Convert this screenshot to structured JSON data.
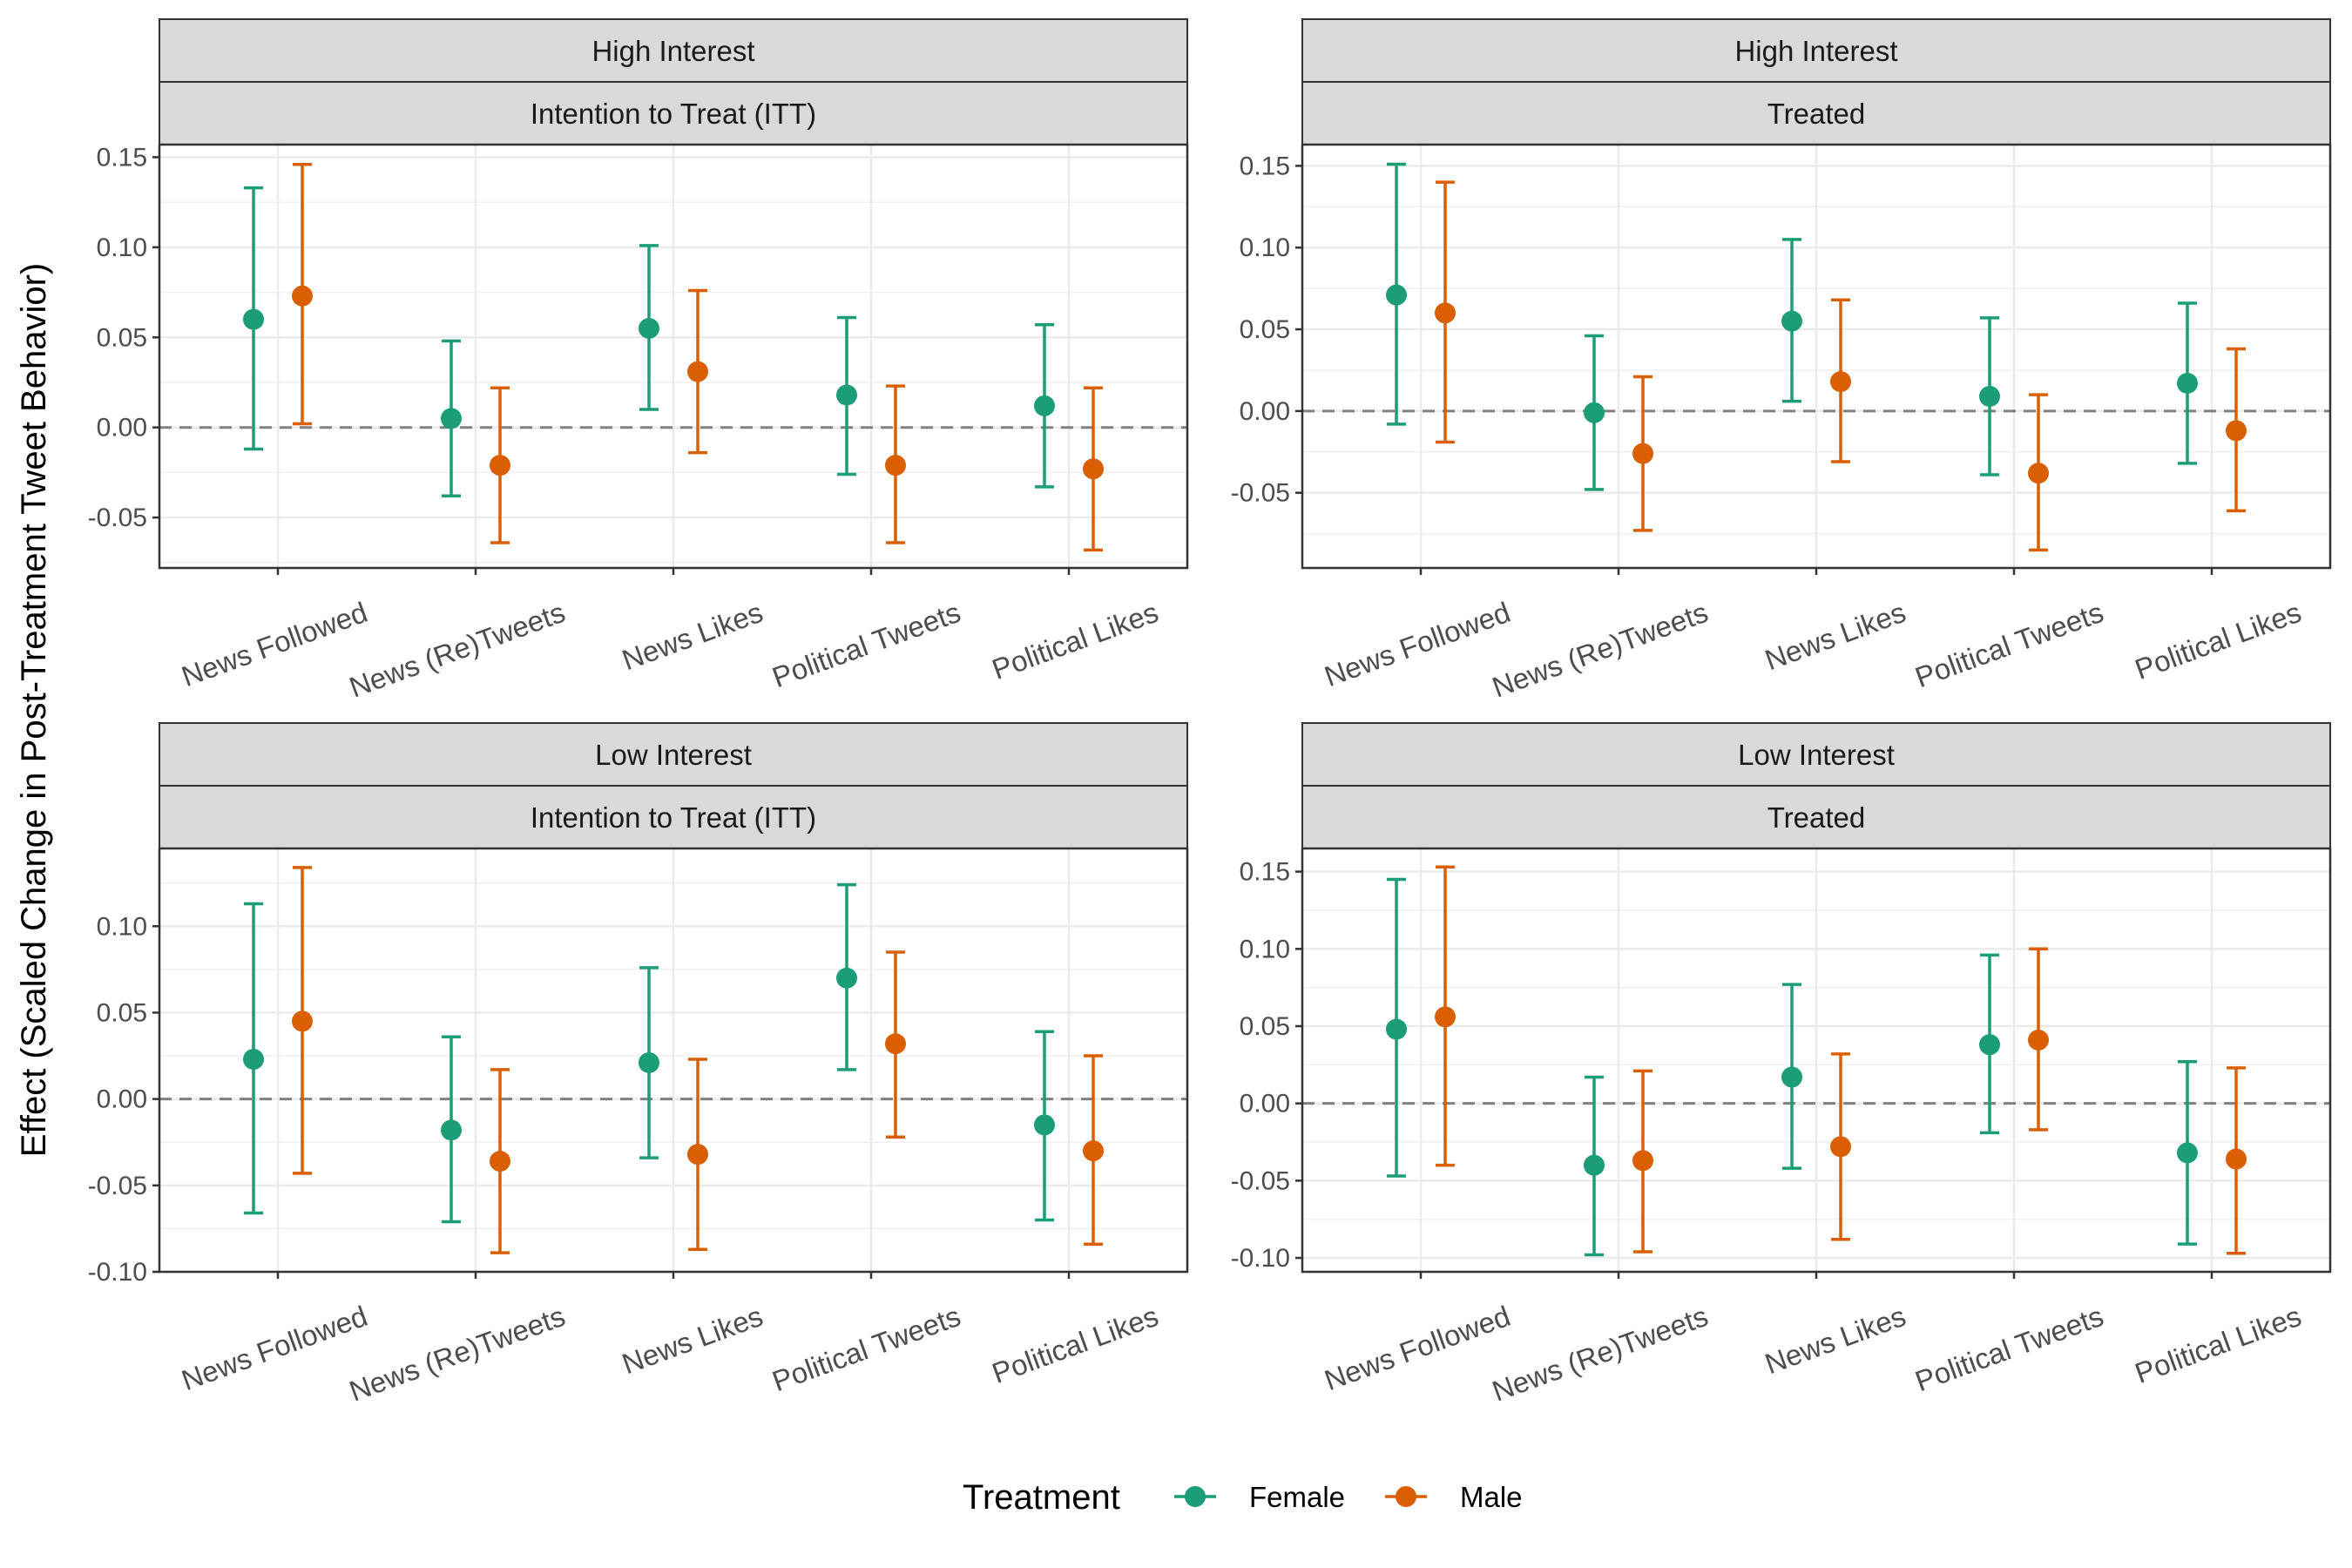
{
  "chart_data": {
    "type": "errorbar",
    "ylabel": "Effect (Scaled Change in Post-Treatment Tweet Behavior)",
    "categories": [
      "News Followed",
      "News (Re)Tweets",
      "News Likes",
      "Political Tweets",
      "Political Likes"
    ],
    "legend": {
      "title": "Treatment",
      "position": "bottom",
      "entries": [
        {
          "name": "Female",
          "color": "#1b9e77"
        },
        {
          "name": "Male",
          "color": "#d95f02"
        }
      ]
    },
    "panels": [
      {
        "strip_top": "High Interest",
        "strip_bottom": "Intention to Treat (ITT)",
        "ylim": [
          -0.078,
          0.157
        ],
        "yticks": [
          0.15,
          0.1,
          0.05,
          0.0,
          -0.05
        ],
        "ytick_labels": [
          "0.15",
          "0.10",
          "0.05",
          "0.00",
          "-0.05"
        ],
        "series": [
          {
            "name": "Female",
            "est": [
              0.06,
              0.005,
              0.055,
              0.018,
              0.012
            ],
            "lo": [
              -0.012,
              -0.038,
              0.01,
              -0.026,
              -0.033
            ],
            "hi": [
              0.133,
              0.048,
              0.101,
              0.061,
              0.057
            ]
          },
          {
            "name": "Male",
            "est": [
              0.073,
              -0.021,
              0.031,
              -0.021,
              -0.023
            ],
            "lo": [
              0.002,
              -0.064,
              -0.014,
              -0.064,
              -0.068
            ],
            "hi": [
              0.146,
              0.022,
              0.076,
              0.023,
              0.022
            ]
          }
        ]
      },
      {
        "strip_top": "High Interest",
        "strip_bottom": "Treated",
        "ylim": [
          -0.096,
          0.163
        ],
        "yticks": [
          0.15,
          0.1,
          0.05,
          0.0,
          -0.05
        ],
        "ytick_labels": [
          "0.15",
          "0.10",
          "0.05",
          "0.00",
          "-0.05"
        ],
        "series": [
          {
            "name": "Female",
            "est": [
              0.071,
              -0.001,
              0.055,
              0.009,
              0.017
            ],
            "lo": [
              -0.008,
              -0.048,
              0.006,
              -0.039,
              -0.032
            ],
            "hi": [
              0.151,
              0.046,
              0.105,
              0.057,
              0.066
            ]
          },
          {
            "name": "Male",
            "est": [
              0.06,
              -0.026,
              0.018,
              -0.038,
              -0.012
            ],
            "lo": [
              -0.019,
              -0.073,
              -0.031,
              -0.085,
              -0.061
            ],
            "hi": [
              0.14,
              0.021,
              0.068,
              0.01,
              0.038
            ]
          }
        ]
      },
      {
        "strip_top": "Low Interest",
        "strip_bottom": "Intention to Treat (ITT)",
        "ylim": [
          -0.1,
          0.145
        ],
        "yticks": [
          0.1,
          0.05,
          0.0,
          -0.05,
          -0.1
        ],
        "ytick_labels": [
          "0.10",
          "0.05",
          "0.00",
          "-0.05",
          "-0.10"
        ],
        "series": [
          {
            "name": "Female",
            "est": [
              0.023,
              -0.018,
              0.021,
              0.07,
              -0.015
            ],
            "lo": [
              -0.066,
              -0.071,
              -0.034,
              0.017,
              -0.07
            ],
            "hi": [
              0.113,
              0.036,
              0.076,
              0.124,
              0.039
            ]
          },
          {
            "name": "Male",
            "est": [
              0.045,
              -0.036,
              -0.032,
              0.032,
              -0.03
            ],
            "lo": [
              -0.043,
              -0.089,
              -0.087,
              -0.022,
              -0.084
            ],
            "hi": [
              0.134,
              0.017,
              0.023,
              0.085,
              0.025
            ]
          }
        ]
      },
      {
        "strip_top": "Low Interest",
        "strip_bottom": "Treated",
        "ylim": [
          -0.109,
          0.165
        ],
        "yticks": [
          0.15,
          0.1,
          0.05,
          0.0,
          -0.05,
          -0.1
        ],
        "ytick_labels": [
          "0.15",
          "0.10",
          "0.05",
          "0.00",
          "-0.05",
          "-0.10"
        ],
        "series": [
          {
            "name": "Female",
            "est": [
              0.048,
              -0.04,
              0.017,
              0.038,
              -0.032
            ],
            "lo": [
              -0.047,
              -0.098,
              -0.042,
              -0.019,
              -0.091
            ],
            "hi": [
              0.145,
              0.017,
              0.077,
              0.096,
              0.027
            ]
          },
          {
            "name": "Male",
            "est": [
              0.056,
              -0.037,
              -0.028,
              0.041,
              -0.036
            ],
            "lo": [
              -0.04,
              -0.096,
              -0.088,
              -0.017,
              -0.097
            ],
            "hi": [
              0.153,
              0.021,
              0.032,
              0.1,
              0.023
            ]
          }
        ]
      }
    ]
  }
}
